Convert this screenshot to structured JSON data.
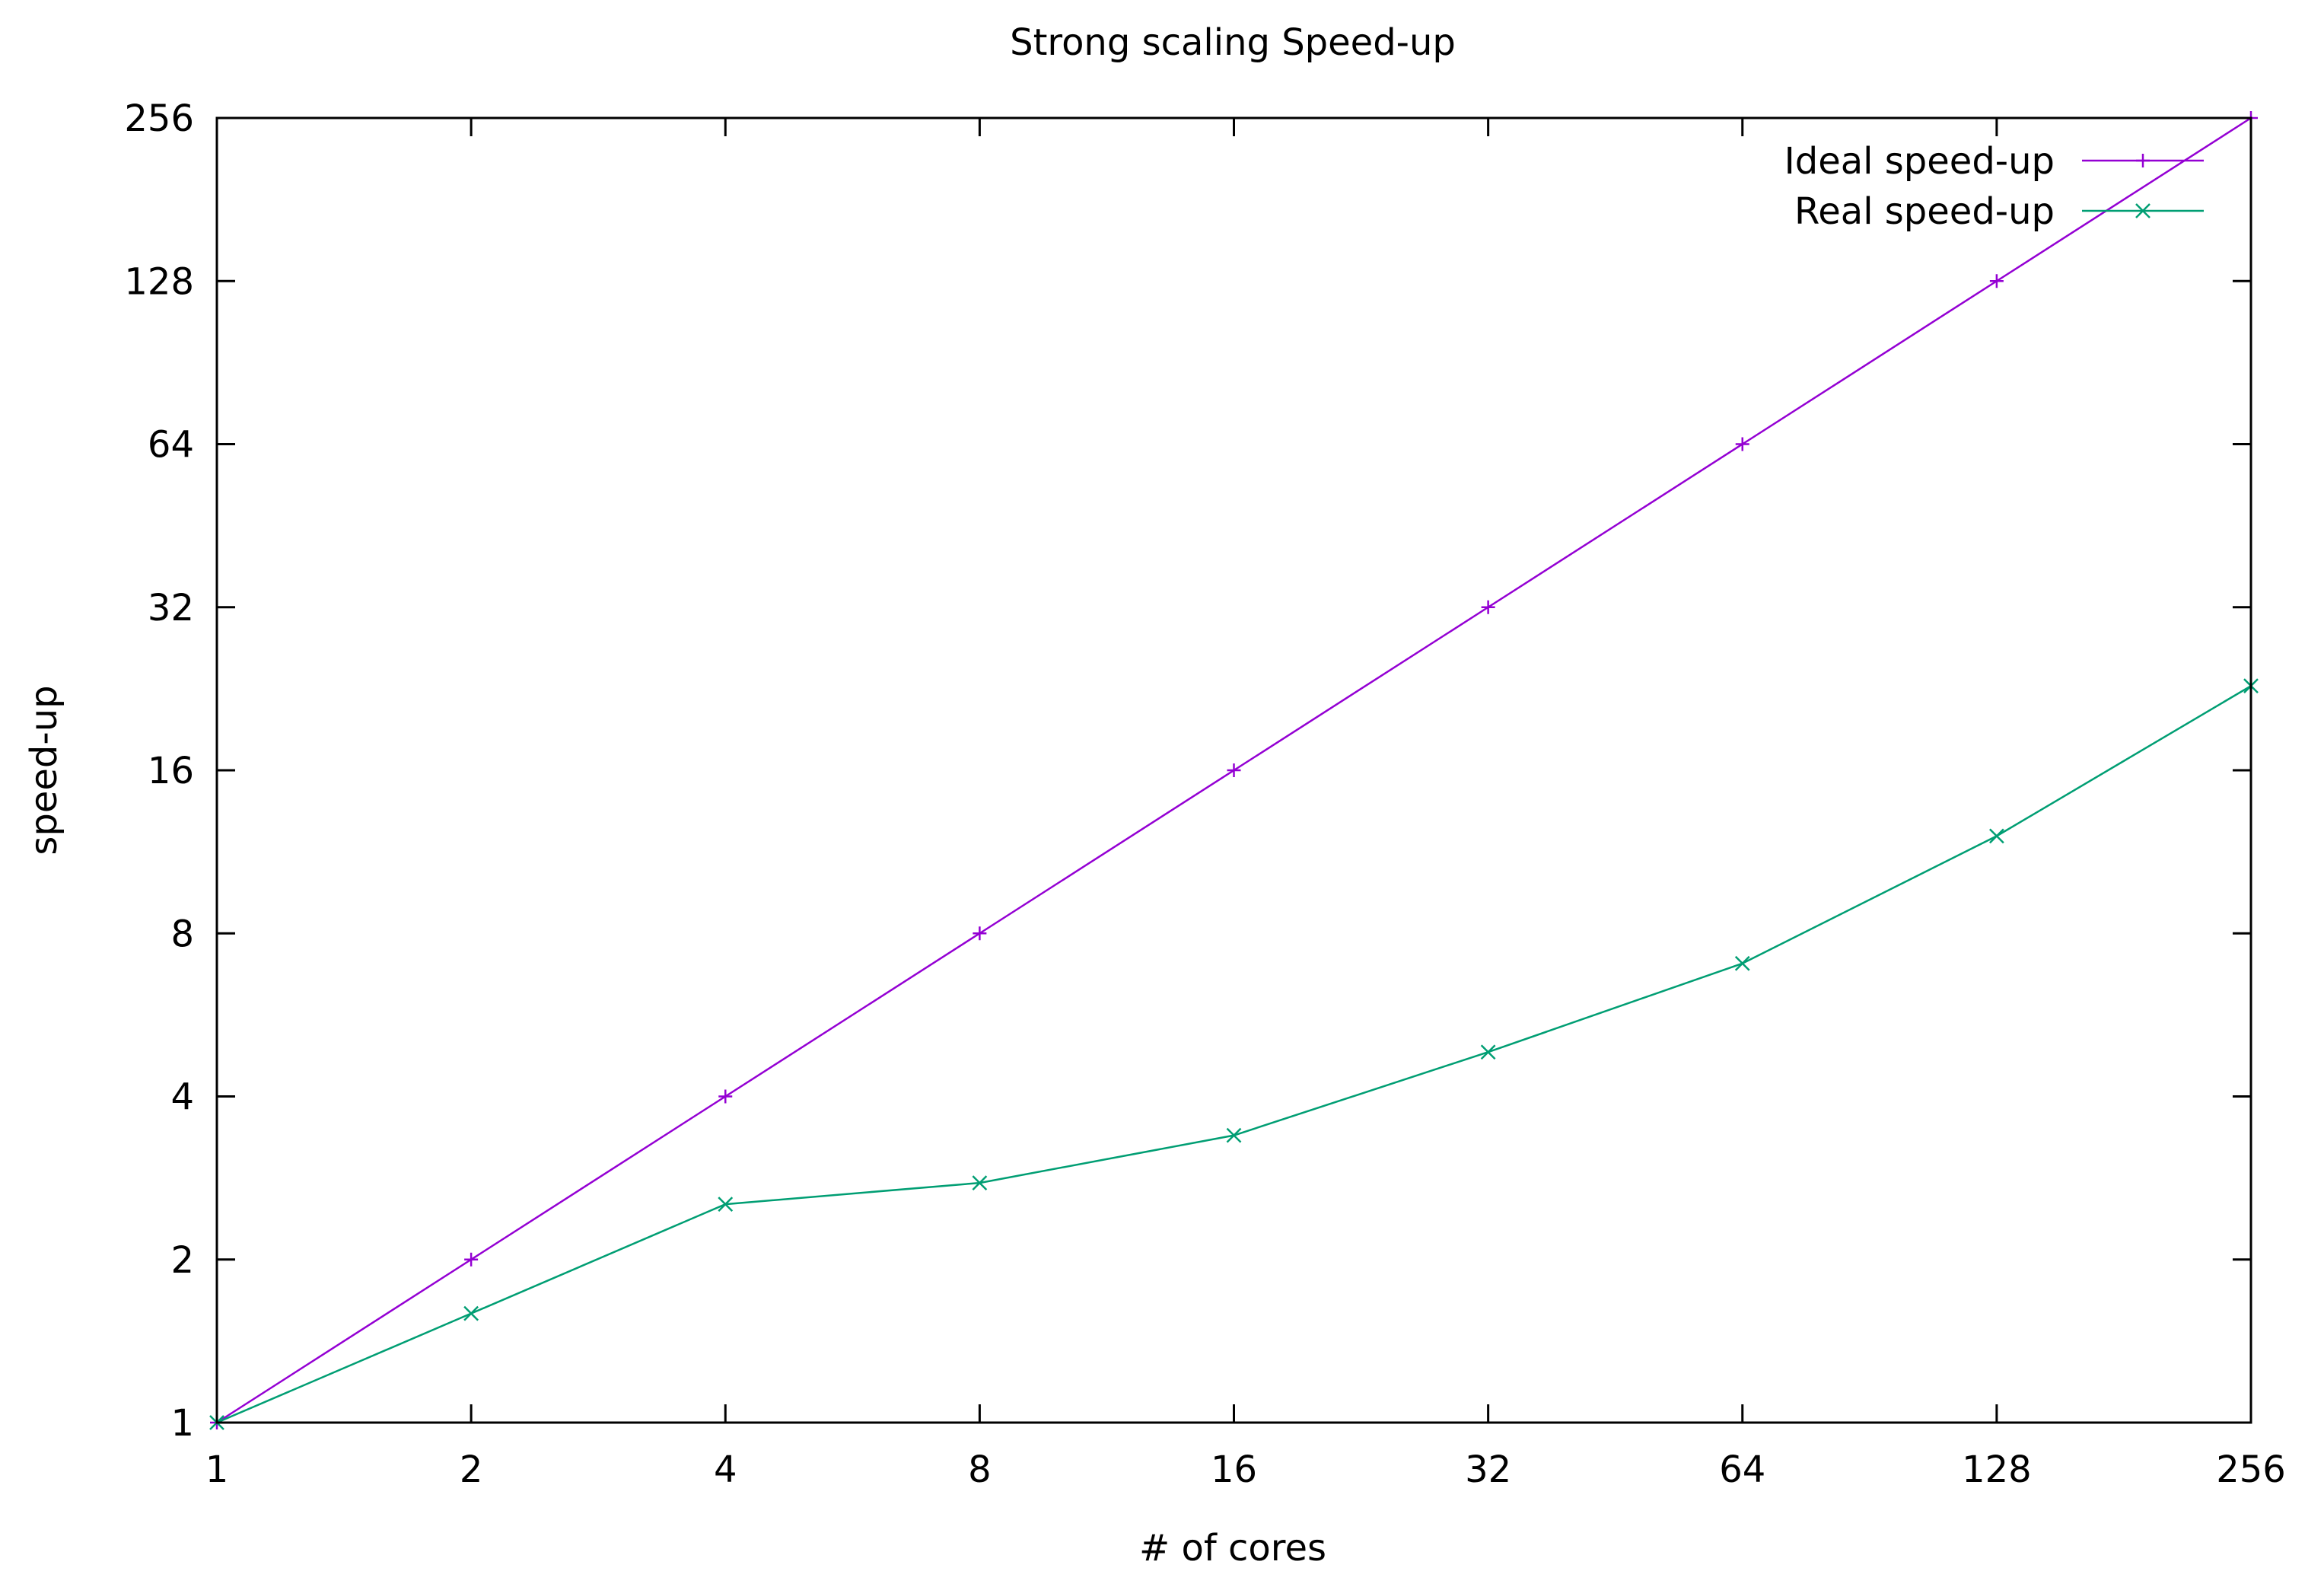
{
  "chart_data": {
    "type": "line",
    "title": "Strong scaling Speed-up",
    "xlabel": "# of cores",
    "ylabel": "speed-up",
    "x_scale": "log2",
    "y_scale": "log2",
    "xlim": [
      1,
      256
    ],
    "ylim": [
      1,
      256
    ],
    "x_ticks": [
      "1",
      "2",
      "4",
      "8",
      "16",
      "32",
      "64",
      "128",
      "256"
    ],
    "y_ticks": [
      "1",
      "2",
      "4",
      "8",
      "16",
      "32",
      "64",
      "128",
      "256"
    ],
    "x": [
      1,
      2,
      4,
      8,
      16,
      32,
      64,
      128,
      256
    ],
    "series": [
      {
        "name": "Ideal speed-up",
        "color": "#9400d3",
        "marker": "plus",
        "values": [
          1,
          2,
          4,
          8,
          16,
          32,
          64,
          128,
          256
        ]
      },
      {
        "name": "Real speed-up",
        "color": "#009e73",
        "marker": "cross",
        "values": [
          1,
          1.59,
          2.53,
          2.77,
          3.39,
          4.83,
          7.04,
          12.1,
          22.9
        ]
      }
    ],
    "grid": false,
    "legend_position": "top-right"
  }
}
